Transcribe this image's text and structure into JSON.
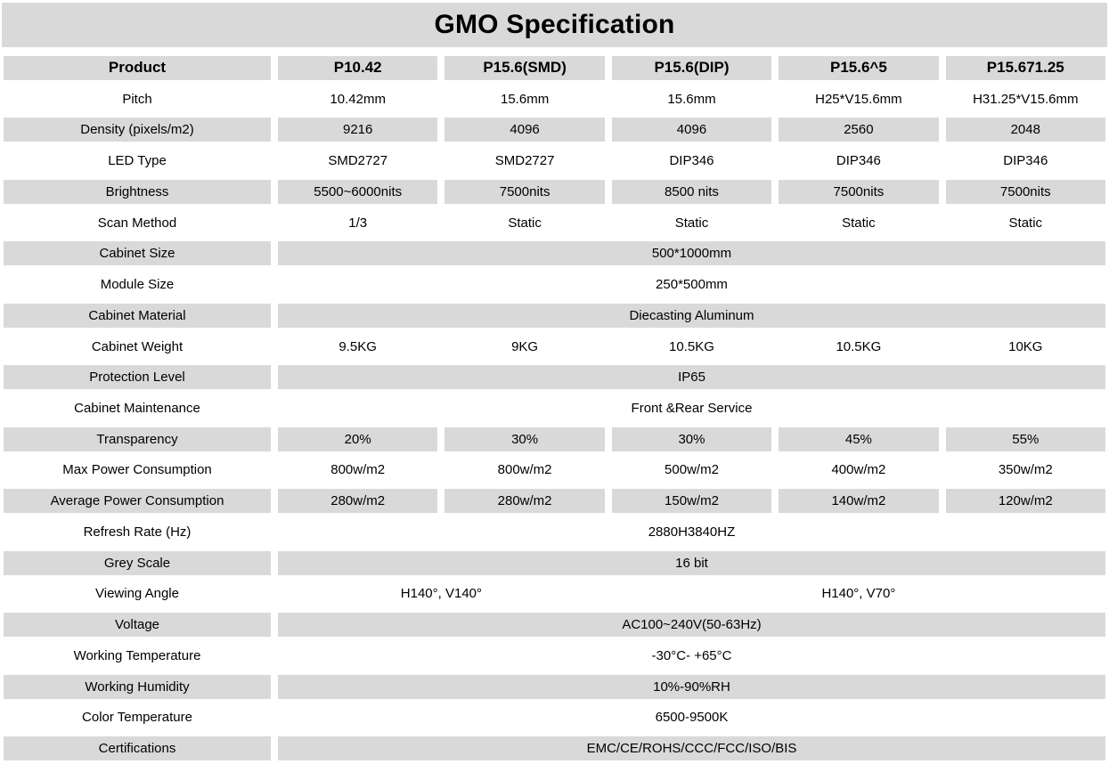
{
  "title": "GMO Specification",
  "colors": {
    "row_shade": "#d9d9d9",
    "background": "#ffffff",
    "text": "#000000"
  },
  "table": {
    "columns": [
      "Product",
      "P10.42",
      "P15.6(SMD)",
      "P15.6(DIP)",
      "P15.6^5",
      "P15.671.25"
    ],
    "rows": [
      {
        "label": "Pitch",
        "shaded": false,
        "cells": [
          "10.42mm",
          "15.6mm",
          "15.6mm",
          "H25*V15.6mm",
          "H31.25*V15.6mm"
        ]
      },
      {
        "label": "Density (pixels/m2)",
        "shaded": true,
        "cells": [
          "9216",
          "4096",
          "4096",
          "2560",
          "2048"
        ]
      },
      {
        "label": "LED Type",
        "shaded": false,
        "cells": [
          "SMD2727",
          "SMD2727",
          "DIP346",
          "DIP346",
          "DIP346"
        ]
      },
      {
        "label": "Brightness",
        "shaded": true,
        "cells": [
          "5500~6000nits",
          "7500nits",
          "8500 nits",
          "7500nits",
          "7500nits"
        ]
      },
      {
        "label": "Scan Method",
        "shaded": false,
        "cells": [
          "1/3",
          "Static",
          "Static",
          "Static",
          "Static"
        ]
      },
      {
        "label": "Cabinet Size",
        "shaded": true,
        "merged": "500*1000mm"
      },
      {
        "label": "Module Size",
        "shaded": false,
        "merged": "250*500mm"
      },
      {
        "label": "Cabinet Material",
        "shaded": true,
        "merged": "Diecasting Aluminum"
      },
      {
        "label": "Cabinet Weight",
        "shaded": false,
        "cells": [
          "9.5KG",
          "9KG",
          "10.5KG",
          "10.5KG",
          "10KG"
        ]
      },
      {
        "label": "Protection Level",
        "shaded": true,
        "merged": "IP65"
      },
      {
        "label": "Cabinet Maintenance",
        "shaded": false,
        "merged": "Front &Rear Service"
      },
      {
        "label": "Transparency",
        "shaded": true,
        "cells": [
          "20%",
          "30%",
          "30%",
          "45%",
          "55%"
        ]
      },
      {
        "label": "Max Power Consumption",
        "shaded": false,
        "cells": [
          "800w/m2",
          "800w/m2",
          "500w/m2",
          "400w/m2",
          "350w/m2"
        ]
      },
      {
        "label": "Average Power Consumption",
        "shaded": true,
        "cells": [
          "280w/m2",
          "280w/m2",
          "150w/m2",
          "140w/m2",
          "120w/m2"
        ]
      },
      {
        "label": "Refresh Rate (Hz)",
        "shaded": false,
        "merged": "2880H3840HZ"
      },
      {
        "label": "Grey Scale",
        "shaded": true,
        "merged": "16 bit"
      },
      {
        "label": "Viewing Angle",
        "shaded": false,
        "spans": [
          {
            "text": "H140°, V140°",
            "cols": 2
          },
          {
            "text": "H140°, V70°",
            "cols": 3
          }
        ]
      },
      {
        "label": "Voltage",
        "shaded": true,
        "merged": "AC100~240V(50-63Hz)"
      },
      {
        "label": "Working Temperature",
        "shaded": false,
        "merged": "-30°C- +65°C"
      },
      {
        "label": "Working Humidity",
        "shaded": true,
        "merged": "10%-90%RH"
      },
      {
        "label": "Color Temperature",
        "shaded": false,
        "merged": "6500-9500K"
      },
      {
        "label": "Certifications",
        "shaded": true,
        "merged": "EMC/CE/ROHS/CCC/FCC/ISO/BIS"
      }
    ]
  }
}
